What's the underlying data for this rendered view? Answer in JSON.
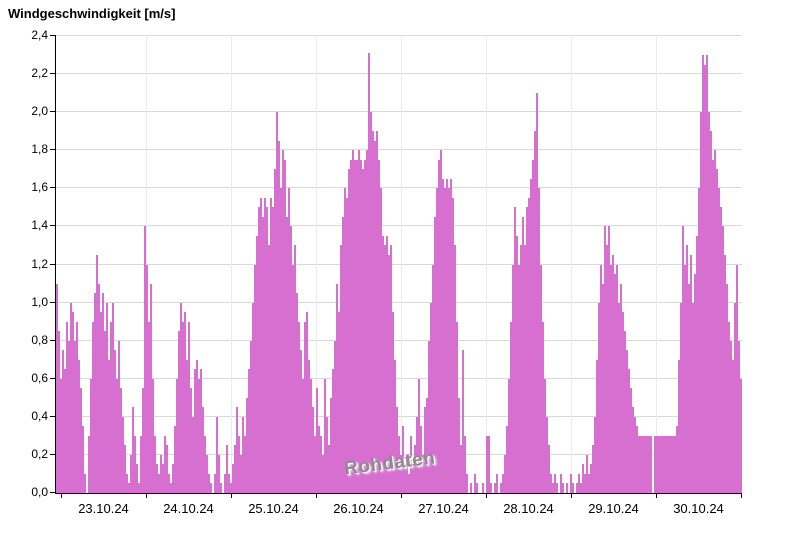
{
  "title": "Windgeschwindigkeit [m/s]",
  "watermark": "Rohdaten",
  "colors": {
    "background": "#ffffff",
    "bar": "#d76fd1",
    "grid": "#d9d9d9",
    "grid_vertical": "#ebebeb",
    "axis": "#000000",
    "text": "#000000",
    "watermark": "#8c8c8c"
  },
  "chart_data": {
    "type": "bar",
    "title": "Windgeschwindigkeit [m/s]",
    "ylabel": "Windgeschwindigkeit [m/s]",
    "xlabel": "",
    "unit": "m/s",
    "grid": true,
    "legend": "none",
    "annotation": "Rohdaten",
    "ylim": [
      0,
      2.4
    ],
    "ytick_step": 0.2,
    "ytick_labels": [
      "0,0",
      "0,2",
      "0,4",
      "0,6",
      "0,8",
      "1,0",
      "1,2",
      "1,4",
      "1,6",
      "1,8",
      "2,0",
      "2,2",
      "2,4"
    ],
    "categories": [
      "23.10.24",
      "24.10.24",
      "25.10.24",
      "26.10.24",
      "27.10.24",
      "28.10.24",
      "29.10.24",
      "30.10.24"
    ],
    "values": [
      1.1,
      0.85,
      0.6,
      0.75,
      0.65,
      0.9,
      0.8,
      1.0,
      0.95,
      0.8,
      0.9,
      0.7,
      0.55,
      0.35,
      0.1,
      0.0,
      0.3,
      0.6,
      0.9,
      1.05,
      1.25,
      1.1,
      0.95,
      1.05,
      0.85,
      1.0,
      0.7,
      0.9,
      1.0,
      0.75,
      0.6,
      0.8,
      0.55,
      0.4,
      0.25,
      0.1,
      0.05,
      0.2,
      0.45,
      0.3,
      0.15,
      0.05,
      0.3,
      0.55,
      1.4,
      1.2,
      0.9,
      1.1,
      0.6,
      0.3,
      0.15,
      0.1,
      0.2,
      0.15,
      0.3,
      0.25,
      0.1,
      0.05,
      0.15,
      0.35,
      0.6,
      0.85,
      1.0,
      0.9,
      0.95,
      0.7,
      0.9,
      0.55,
      0.4,
      0.65,
      0.7,
      0.6,
      0.65,
      0.45,
      0.3,
      0.2,
      0.1,
      0.05,
      0.0,
      0.1,
      0.4,
      0.2,
      0.05,
      0.0,
      0.1,
      0.25,
      0.1,
      0.05,
      0.15,
      0.25,
      0.45,
      0.3,
      0.2,
      0.4,
      0.3,
      0.5,
      0.65,
      0.8,
      1.0,
      1.2,
      1.35,
      1.5,
      1.55,
      1.45,
      1.55,
      1.5,
      1.3,
      1.55,
      1.5,
      1.7,
      2.0,
      1.85,
      1.6,
      1.8,
      1.75,
      1.45,
      1.6,
      1.4,
      1.2,
      1.3,
      1.05,
      0.9,
      0.75,
      0.6,
      0.9,
      0.95,
      0.7,
      0.6,
      0.45,
      0.3,
      0.55,
      0.35,
      0.3,
      0.2,
      0.6,
      0.4,
      0.25,
      0.5,
      0.65,
      0.8,
      1.1,
      0.95,
      1.3,
      1.45,
      1.6,
      1.55,
      1.7,
      1.75,
      1.8,
      1.75,
      1.75,
      1.8,
      1.75,
      1.7,
      1.75,
      1.8,
      2.31,
      2.0,
      1.9,
      1.85,
      1.9,
      1.75,
      1.6,
      1.35,
      1.3,
      1.35,
      1.25,
      1.3,
      0.95,
      0.7,
      0.45,
      0.3,
      0.2,
      0.35,
      0.15,
      0.2,
      0.1,
      0.3,
      0.15,
      0.25,
      0.4,
      0.6,
      0.35,
      0.2,
      0.45,
      0.5,
      0.8,
      1.0,
      1.2,
      1.45,
      1.6,
      1.75,
      1.8,
      1.65,
      1.6,
      1.65,
      1.6,
      1.65,
      1.55,
      1.3,
      0.9,
      0.5,
      0.25,
      0.75,
      0.3,
      0.1,
      0.0,
      0.05,
      0.0,
      0.1,
      0.05,
      0.0,
      0.0,
      0.05,
      0.0,
      0.3,
      0.3,
      0.05,
      0.0,
      0.05,
      0.1,
      0.0,
      0.05,
      0.1,
      0.2,
      0.35,
      0.6,
      0.9,
      1.2,
      1.5,
      1.35,
      1.2,
      1.3,
      1.45,
      1.3,
      1.5,
      1.55,
      1.65,
      1.75,
      1.9,
      2.1,
      1.6,
      1.2,
      0.9,
      0.6,
      0.4,
      0.25,
      0.1,
      0.05,
      0.1,
      0.05,
      0.0,
      0.1,
      0.05,
      0.0,
      0.05,
      0.0,
      0.1,
      0.05,
      0.0,
      0.05,
      0.1,
      0.05,
      0.15,
      0.1,
      0.2,
      0.1,
      0.15,
      0.25,
      0.4,
      0.7,
      1.0,
      1.2,
      1.1,
      1.4,
      1.3,
      1.4,
      1.2,
      1.25,
      1.15,
      1.2,
      1.0,
      1.1,
      0.95,
      0.85,
      0.75,
      0.65,
      0.55,
      0.45,
      0.4,
      0.35,
      0.3,
      0.3,
      0.3,
      0.3,
      0.3,
      0.3,
      0.3,
      0.0,
      0.3,
      0.3,
      0.3,
      0.3,
      0.3,
      0.3,
      0.3,
      0.3,
      0.3,
      0.3,
      0.3,
      0.35,
      0.7,
      1.0,
      1.4,
      1.2,
      1.3,
      1.1,
      1.25,
      1.0,
      1.15,
      1.35,
      1.6,
      2.0,
      2.3,
      2.25,
      2.3,
      2.0,
      1.9,
      1.75,
      1.8,
      1.7,
      1.6,
      1.5,
      1.4,
      1.25,
      1.1,
      0.9,
      0.8,
      0.7,
      1.0,
      1.2,
      0.8,
      0.6
    ]
  }
}
